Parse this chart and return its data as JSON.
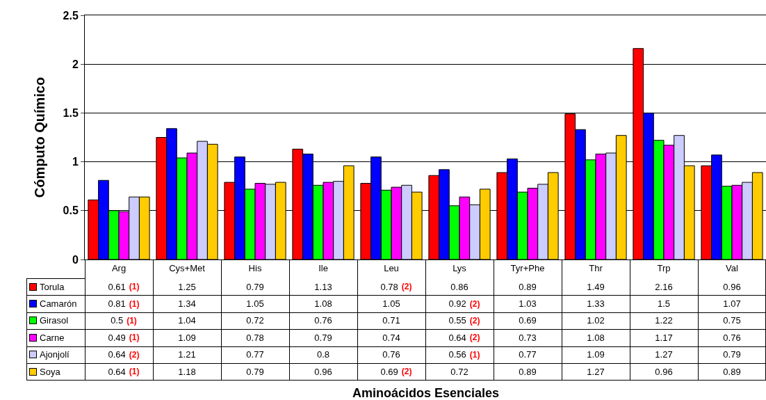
{
  "chart_data": {
    "type": "bar",
    "annotations": [
      "Aminoácidos Esenciales"
    ],
    "ylabel": "Cómputo Químico",
    "categories": [
      "Arg",
      "Cys+Met",
      "His",
      "Ile",
      "Leu",
      "Lys",
      "Tyr+Phe",
      "Thr",
      "Trp",
      "Val"
    ],
    "series": [
      {
        "name": "Torula",
        "color": "#ff0000",
        "values": [
          0.61,
          1.25,
          0.79,
          1.13,
          0.78,
          0.86,
          0.89,
          1.49,
          2.16,
          0.96
        ],
        "value_labels": [
          "0.61 (1)",
          "1.25",
          "0.79",
          "1.13",
          "0.78 (2)",
          "0.86",
          "0.89",
          "1.49",
          "2.16",
          "0.96"
        ]
      },
      {
        "name": "Camarón",
        "color": "#0000ff",
        "values": [
          0.81,
          1.34,
          1.05,
          1.08,
          1.05,
          0.92,
          1.03,
          1.33,
          1.5,
          1.07
        ],
        "value_labels": [
          "0.81 (1)",
          "1.34",
          "1.05",
          "1.08",
          "1.05",
          "0.92 (2)",
          "1.03",
          "1.33",
          "1.5",
          "1.07"
        ]
      },
      {
        "name": "Girasol",
        "color": "#00ff00",
        "values": [
          0.5,
          1.04,
          0.72,
          0.76,
          0.71,
          0.55,
          0.69,
          1.02,
          1.22,
          0.75
        ],
        "value_labels": [
          "0.5 (1)",
          "1.04",
          "0.72",
          "0.76",
          "0.71",
          "0.55 (2)",
          "0.69",
          "1.02",
          "1.22",
          "0.75"
        ]
      },
      {
        "name": "Carne",
        "color": "#ff00ff",
        "values": [
          0.49,
          1.09,
          0.78,
          0.79,
          0.74,
          0.64,
          0.73,
          1.08,
          1.17,
          0.76
        ],
        "value_labels": [
          "0.49 (1)",
          "1.09",
          "0.78",
          "0.79",
          "0.74",
          "0.64 (2)",
          "0.73",
          "1.08",
          "1.17",
          "0.76"
        ]
      },
      {
        "name": "Ajonjolí",
        "color": "#ccccff",
        "values": [
          0.64,
          1.21,
          0.77,
          0.8,
          0.76,
          0.56,
          0.77,
          1.09,
          1.27,
          0.79
        ],
        "value_labels": [
          "0.64 (2)",
          "1.21",
          "0.77",
          "0.8",
          "0.76",
          "0.56 (1)",
          "0.77",
          "1.09",
          "1.27",
          "0.79"
        ]
      },
      {
        "name": "Soya",
        "color": "#ffcc00",
        "values": [
          0.64,
          1.18,
          0.79,
          0.96,
          0.69,
          0.72,
          0.89,
          1.27,
          0.96,
          0.89
        ],
        "value_labels": [
          "0.64 (1)",
          "1.18",
          "0.79",
          "0.96",
          "0.69 (2)",
          "0.72",
          "0.89",
          "1.27",
          "0.96",
          "0.89"
        ]
      }
    ],
    "ylim": [
      0,
      2.5
    ],
    "yticks": [
      0,
      0.5,
      1,
      1.5,
      2,
      2.5
    ],
    "grid": "y",
    "legend": "left"
  }
}
